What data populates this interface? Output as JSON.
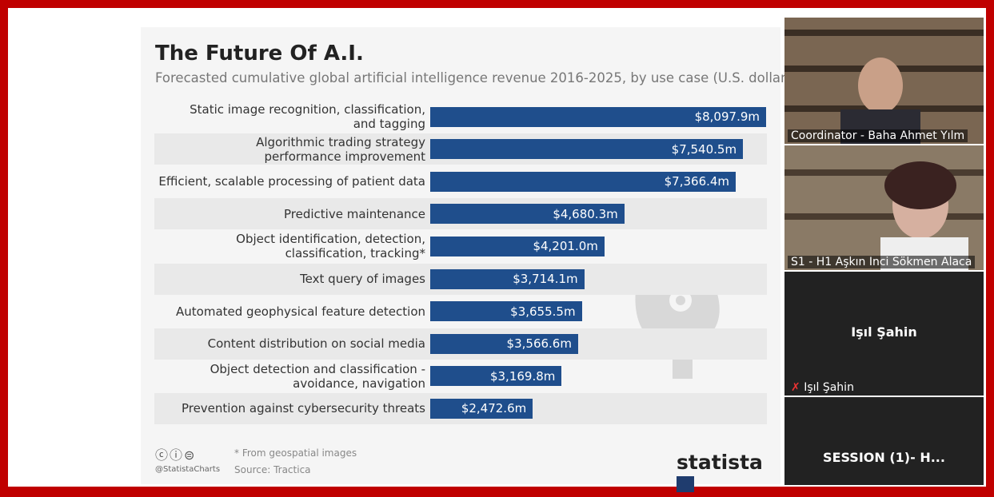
{
  "chart_data": {
    "type": "bar",
    "orientation": "horizontal",
    "title": "The Future Of A.I.",
    "subtitle": "Forecasted cumulative global artificial intelligence revenue 2016-2025, by use case (U.S. dollars)",
    "categories": [
      "Static image recognition, classification,\nand tagging",
      "Algorithmic trading strategy\nperformance improvement",
      "Efficient, scalable processing of patient data",
      "Predictive maintenance",
      "Object identification, detection,\nclassification, tracking*",
      "Text query of images",
      "Automated geophysical feature detection",
      "Content distribution on social media",
      "Object detection and classification -\navoidance, navigation",
      "Prevention against cybersecurity threats"
    ],
    "values": [
      8097.9,
      7540.5,
      7366.4,
      4680.3,
      4201.0,
      3714.1,
      3655.5,
      3566.6,
      3169.8,
      2472.6
    ],
    "value_labels": [
      "$8,097.9m",
      "$7,540.5m",
      "$7,366.4m",
      "$4,680.3m",
      "$4,201.0m",
      "$3,714.1m",
      "$3,655.5m",
      "$3,566.6m",
      "$3,169.8m",
      "$2,472.6m"
    ],
    "color": "#1f4e8c",
    "footnote": "* From geospatial images",
    "source": "Source: Tractica",
    "handle": "@StatistaCharts",
    "brand": "statista"
  },
  "participants": [
    {
      "label": "Coordinator - Baha Ahmet Yılm"
    },
    {
      "label": "S1 - H1 Aşkın Inci Sökmen Alaca"
    },
    {
      "name": "Işıl Şahin",
      "label": "Işıl Şahin"
    },
    {
      "name": "SESSION (1)- H..."
    }
  ]
}
